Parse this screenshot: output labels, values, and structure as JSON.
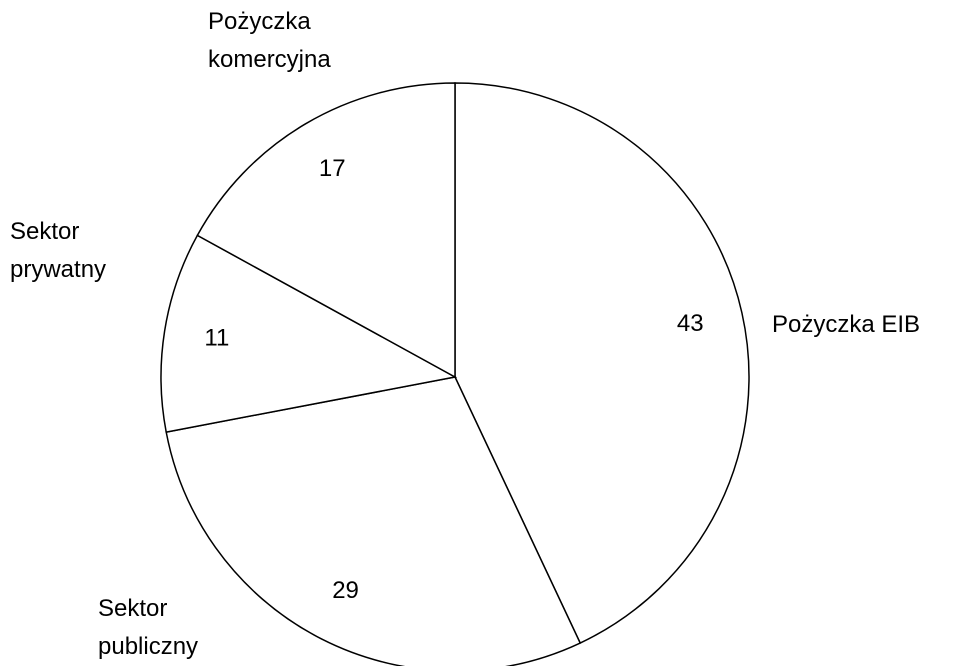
{
  "chart_data": {
    "type": "pie",
    "categories": [
      "Pożyczka EIB",
      "Sektor publiczny",
      "Sektor prywatny",
      "Pożyczka komercyjna"
    ],
    "values": [
      43,
      29,
      11,
      17
    ],
    "color": "#ffffff",
    "edge_color": "#000000"
  }
}
